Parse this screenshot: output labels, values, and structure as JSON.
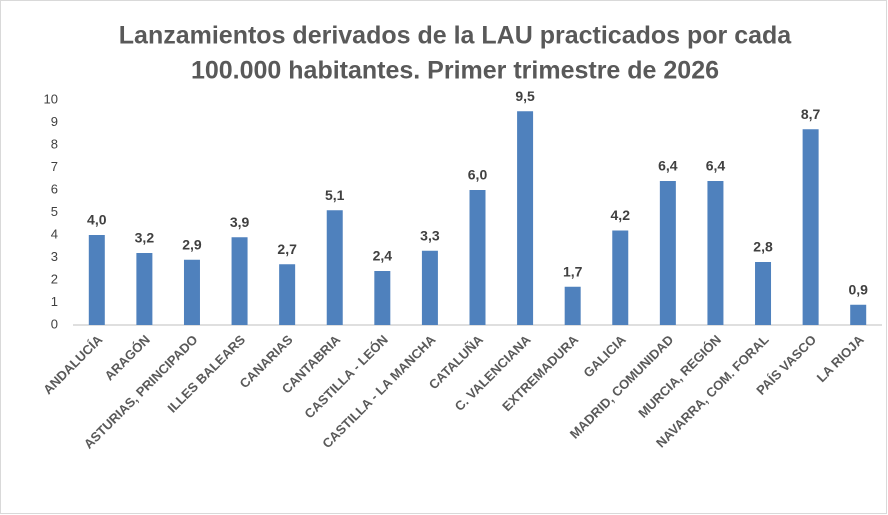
{
  "chart_data": {
    "type": "bar",
    "title": [
      "Lanzamientos derivados de la LAU practicados por cada",
      "100.000 habitantes. Primer trimestre de 2026"
    ],
    "categories": [
      "ANDALUCÍA",
      "ARAGÓN",
      "ASTURIAS, PRINCIPADO",
      "ILLES BALEARS",
      "CANARIAS",
      "CANTABRIA",
      "CASTILLA - LEÓN",
      "CASTILLA - LA MANCHA",
      "CATALUÑA",
      "C. VALENCIANA",
      "EXTREMADURA",
      "GALICIA",
      "MADRID, COMUNIDAD",
      "MURCIA, REGIÓN",
      "NAVARRA, COM. FORAL",
      "PAÍS VASCO",
      "LA RIOJA"
    ],
    "values": [
      4.0,
      3.2,
      2.9,
      3.9,
      2.7,
      5.1,
      2.4,
      3.3,
      6.0,
      9.5,
      1.7,
      4.2,
      6.4,
      6.4,
      2.8,
      8.7,
      0.9
    ],
    "value_labels": [
      "4,0",
      "3,2",
      "2,9",
      "3,9",
      "2,7",
      "5,1",
      "2,4",
      "3,3",
      "6,0",
      "9,5",
      "1,7",
      "4,2",
      "6,4",
      "6,4",
      "2,8",
      "8,7",
      "0,9"
    ],
    "color": "#4f81bd",
    "ylim": [
      0,
      10
    ],
    "yticks": [
      0,
      1,
      2,
      3,
      4,
      5,
      6,
      7,
      8,
      9,
      10
    ],
    "grid": false
  }
}
